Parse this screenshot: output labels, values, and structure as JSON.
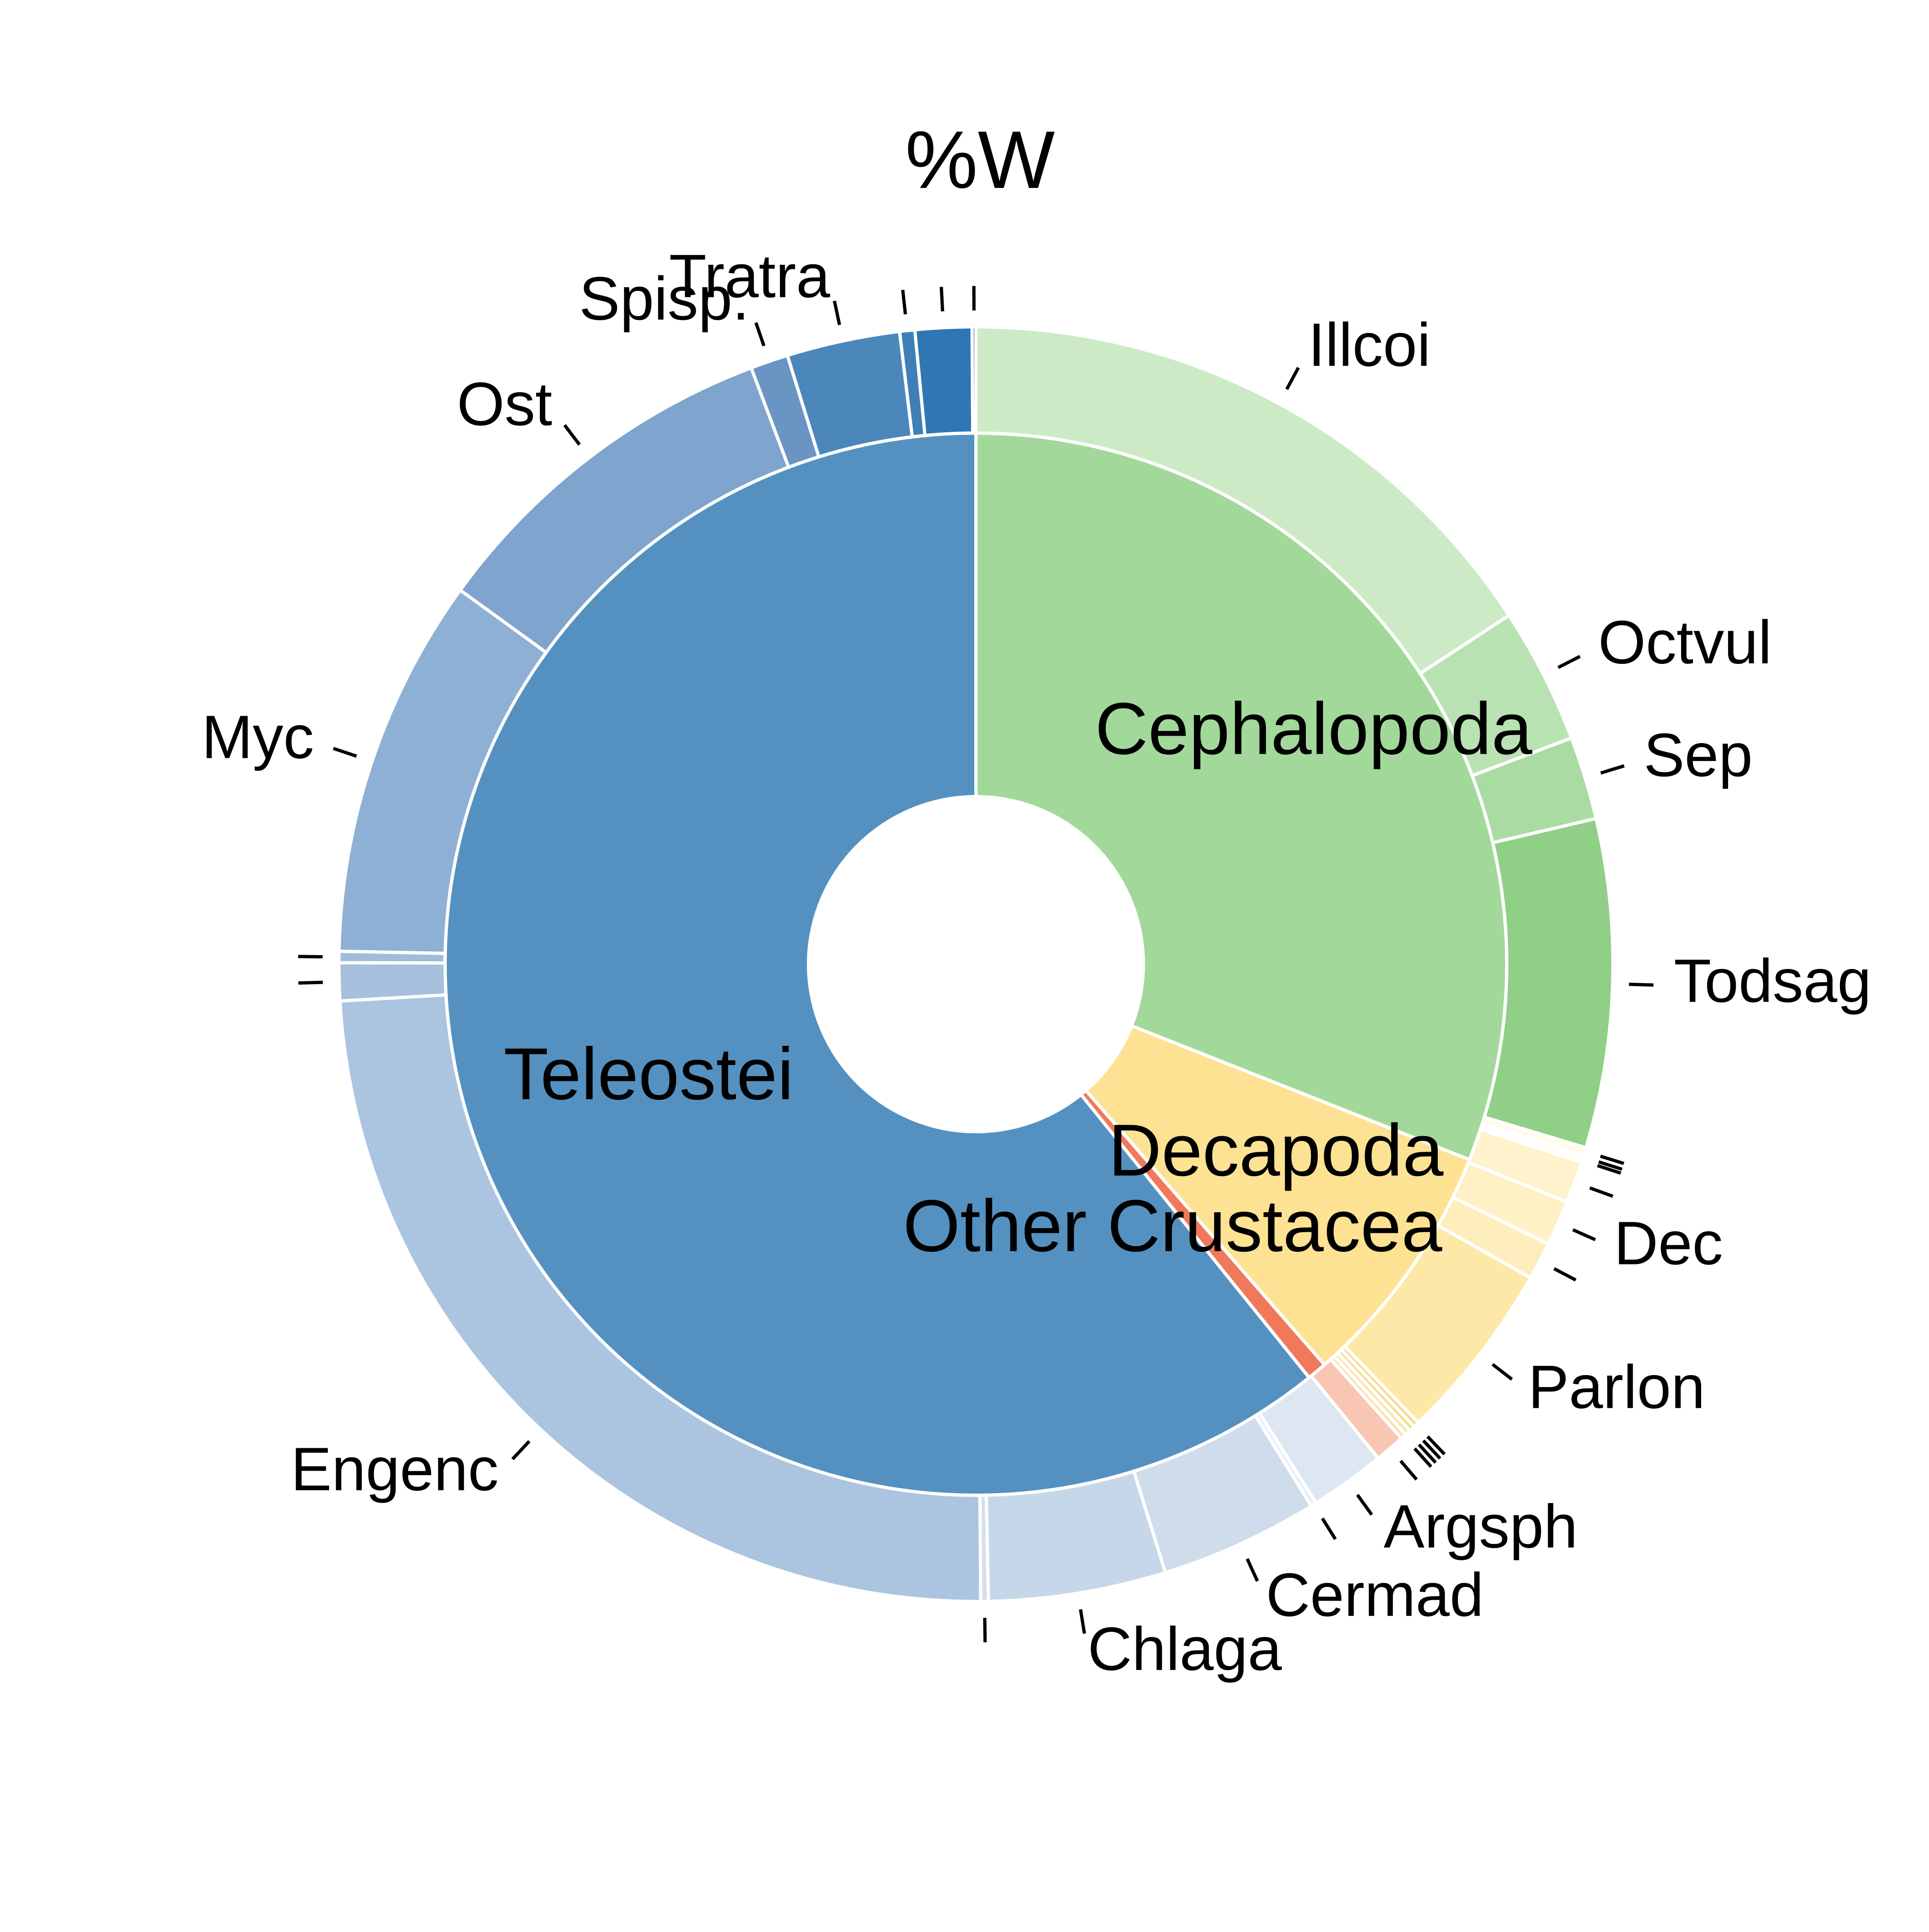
{
  "chart_data": {
    "type": "pie",
    "subtype": "nested-donut",
    "title": "%W",
    "start": "top, clockwise",
    "inner_ring": [
      {
        "name": "Cephalopoda",
        "value": 31.0,
        "color": "#a3d89b"
      },
      {
        "name": "Decapoda",
        "value": 7.6,
        "color": "#fde293"
      },
      {
        "name": "Other Crustacea",
        "value": 0.6,
        "color": "#f0795b"
      },
      {
        "name": "Teleostei",
        "value": 60.8,
        "color": "#5591c0"
      }
    ],
    "outer_ring": [
      {
        "name": "Illcoi",
        "value": 16.5,
        "group": "Cephalopoda",
        "color": "#cdeac7",
        "labeled": true
      },
      {
        "name": "Octvul",
        "value": 3.6,
        "group": "Cephalopoda",
        "color": "#b9e2b2",
        "labeled": true
      },
      {
        "name": "Sep",
        "value": 2.2,
        "group": "Cephalopoda",
        "color": "#a9dba2",
        "labeled": true
      },
      {
        "name": "Todsag",
        "value": 8.7,
        "group": "Cephalopoda",
        "color": "#8fcf86",
        "labeled": true
      },
      {
        "name": "",
        "value": 0.2,
        "group": "Decapoda",
        "color": "#fffbe8",
        "labeled": false
      },
      {
        "name": "",
        "value": 0.1,
        "group": "Decapoda",
        "color": "#fff7dc",
        "labeled": false
      },
      {
        "name": "",
        "value": 0.1,
        "group": "Decapoda",
        "color": "#fff4d2",
        "labeled": false
      },
      {
        "name": "",
        "value": 1.1,
        "group": "Decapoda",
        "color": "#fff2cc",
        "labeled": false
      },
      {
        "name": "Dec",
        "value": 1.2,
        "group": "Decapoda",
        "color": "#fff0c6",
        "labeled": true
      },
      {
        "name": "",
        "value": 1.0,
        "group": "Decapoda",
        "color": "#feedbd",
        "labeled": false
      },
      {
        "name": "Parlon",
        "value": 4.8,
        "group": "Decapoda",
        "color": "#fde8a8",
        "labeled": true
      },
      {
        "name": "",
        "value": 0.15,
        "group": "Other Crustacea",
        "color": "#f9d98c",
        "labeled": false
      },
      {
        "name": "",
        "value": 0.15,
        "group": "Other Crustacea",
        "color": "#f9d98c",
        "labeled": false
      },
      {
        "name": "",
        "value": 0.15,
        "group": "Other Crustacea",
        "color": "#f7e4ae",
        "labeled": false
      },
      {
        "name": "",
        "value": 0.15,
        "group": "Other Crustacea",
        "color": "#f7e4ae",
        "labeled": false
      },
      {
        "name": "",
        "value": 0.8,
        "group": "Other Crustacea",
        "color": "#f9c6b4",
        "labeled": false
      },
      {
        "name": "Argsph",
        "value": 2.0,
        "group": "Teleostei",
        "color": "#dce7f2",
        "labeled": true
      },
      {
        "name": "",
        "value": 0.15,
        "group": "Teleostei",
        "color": "#e8eff7",
        "labeled": false
      },
      {
        "name": "Cermad",
        "value": 4.2,
        "group": "Teleostei",
        "color": "#cfdcec",
        "labeled": true
      },
      {
        "name": "Chlaga",
        "value": 4.7,
        "group": "Teleostei",
        "color": "#c7d7ea",
        "labeled": true
      },
      {
        "name": "",
        "value": 0.2,
        "group": "Teleostei",
        "color": "#d2dfee",
        "labeled": false
      },
      {
        "name": "Engenc",
        "value": 25.3,
        "group": "Teleostei",
        "color": "#abc4df",
        "labeled": true
      },
      {
        "name": "",
        "value": 1.0,
        "group": "Teleostei",
        "color": "#a6c0dd",
        "labeled": false
      },
      {
        "name": "",
        "value": 0.3,
        "group": "Teleostei",
        "color": "#a1bcdb",
        "labeled": false
      },
      {
        "name": "Myc",
        "value": 10.1,
        "group": "Teleostei",
        "color": "#8fb0d5",
        "labeled": true
      },
      {
        "name": "Ost",
        "value": 9.7,
        "group": "Teleostei",
        "color": "#7fa4cd",
        "labeled": true
      },
      {
        "name": "Spisp.",
        "value": 1.0,
        "group": "Teleostei",
        "color": "#6994c4",
        "labeled": true
      },
      {
        "name": "Tratra",
        "value": 3.0,
        "group": "Teleostei",
        "color": "#4c87bc",
        "labeled": true
      },
      {
        "name": "",
        "value": 0.4,
        "group": "Teleostei",
        "color": "#3f7fb8",
        "labeled": false
      },
      {
        "name": "",
        "value": 1.5,
        "group": "Teleostei",
        "color": "#2f76b4",
        "labeled": false
      },
      {
        "name": "",
        "value": 0.1,
        "group": "Teleostei",
        "color": "#2a6fae",
        "labeled": false
      }
    ]
  }
}
